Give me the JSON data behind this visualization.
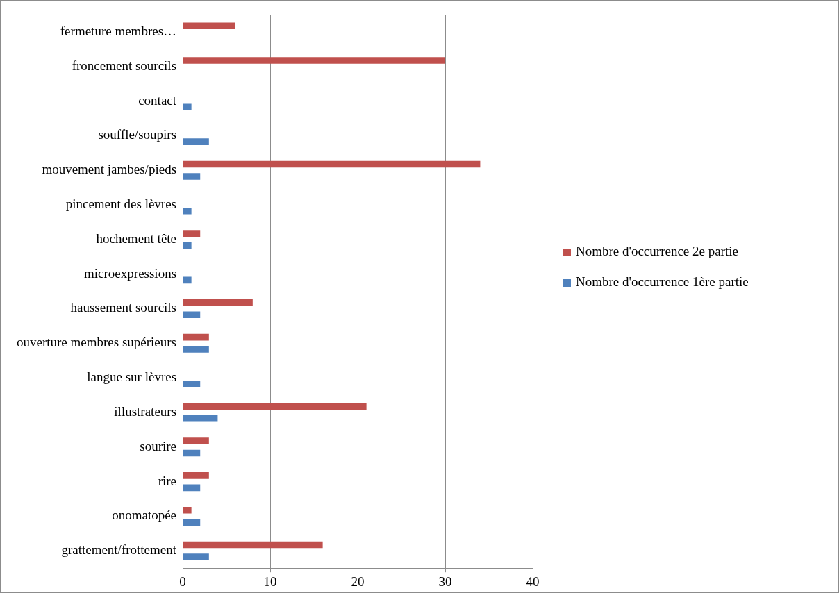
{
  "chart_data": {
    "type": "bar",
    "orientation": "horizontal",
    "categories": [
      "fermeture membres…",
      "froncement sourcils",
      "contact",
      "souffle/soupirs",
      "mouvement jambes/pieds",
      "pincement des lèvres",
      "hochement tête",
      "microexpressions",
      "haussement sourcils",
      "ouverture membres supérieurs",
      "langue sur lèvres",
      "illustrateurs",
      "sourire",
      "rire",
      "onomatopée",
      "grattement/frottement"
    ],
    "series": [
      {
        "name": "Nombre d'occurrence 2e partie",
        "color": "#c0504d",
        "values": [
          6,
          30,
          null,
          null,
          34,
          null,
          2,
          null,
          8,
          3,
          null,
          21,
          3,
          3,
          1,
          16
        ]
      },
      {
        "name": "Nombre d'occurrence 1ère partie",
        "color": "#4f81bd",
        "values": [
          null,
          null,
          1,
          3,
          2,
          1,
          1,
          1,
          2,
          3,
          2,
          4,
          2,
          2,
          2,
          3
        ]
      }
    ],
    "xlim": [
      0,
      40
    ],
    "xticks": [
      0,
      10,
      20,
      30,
      40
    ],
    "grid": "x",
    "legend": "right"
  }
}
